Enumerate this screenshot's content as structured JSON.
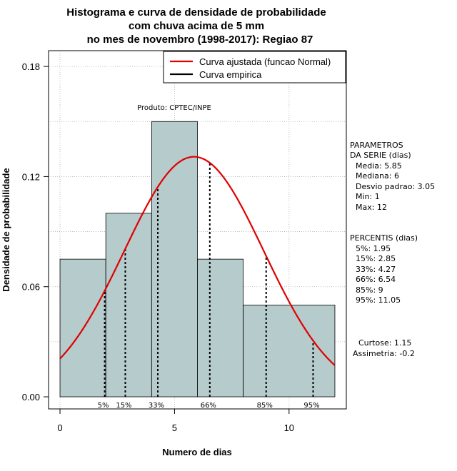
{
  "chart_data": {
    "type": "bar",
    "title_lines": [
      "Histograma e curva de densidade de probabilidade",
      "com chuva acima de 5 mm",
      "no mes de novembro (1998-2017): Regiao 87"
    ],
    "xlabel": "Numero de dias",
    "ylabel": "Densidade de probabilidade",
    "xlim": [
      -0.5,
      12.5
    ],
    "ylim": [
      0,
      0.18
    ],
    "xticks": [
      "0",
      "5",
      "10"
    ],
    "xtick_values": [
      0,
      5,
      10
    ],
    "yticks": [
      "0.00",
      "0.06",
      "0.12",
      "0.18"
    ],
    "ytick_values": [
      0,
      0.06,
      0.12,
      0.18
    ],
    "bins": [
      {
        "x0": 0,
        "x1": 2,
        "density": 0.075
      },
      {
        "x0": 2,
        "x1": 4,
        "density": 0.1
      },
      {
        "x0": 4,
        "x1": 6,
        "density": 0.15
      },
      {
        "x0": 6,
        "x1": 8,
        "density": 0.075
      },
      {
        "x0": 8,
        "x1": 12,
        "density": 0.05
      }
    ],
    "bar_color": "#b6cbcb",
    "grid": true,
    "fitted_curve": {
      "name": "Curva ajustada (funcao Normal)",
      "color": "#e00000",
      "mean": 5.85,
      "sd": 3.05
    },
    "empirical_curve": {
      "name": "Curva empirica",
      "color": "#000000"
    },
    "legend_position": "top-right",
    "credit": "Produto: CPTEC/INPE",
    "percentile_lines": [
      {
        "label": "5%",
        "x": 1.95
      },
      {
        "label": "15%",
        "x": 2.85
      },
      {
        "label": "33%",
        "x": 4.27
      },
      {
        "label": "66%",
        "x": 6.54
      },
      {
        "label": "85%",
        "x": 9
      },
      {
        "label": "95%",
        "x": 11.05
      }
    ],
    "parametros": {
      "heading": [
        "PARAMETROS",
        "DA SERIE (dias)"
      ],
      "lines": [
        "Media: 5.85",
        "Mediana: 6",
        "Desvio padrao: 3.05",
        "Min: 1",
        "Max: 12"
      ]
    },
    "percentis": {
      "heading": "PERCENTIS (dias)",
      "lines": [
        "5%: 1.95",
        "15%: 2.85",
        "33%: 4.27",
        "66%: 6.54",
        "85%: 9",
        "95%: 11.05"
      ]
    },
    "shape_stats": [
      "Curtose: 1.15",
      "Assimetria: -0.2"
    ]
  }
}
